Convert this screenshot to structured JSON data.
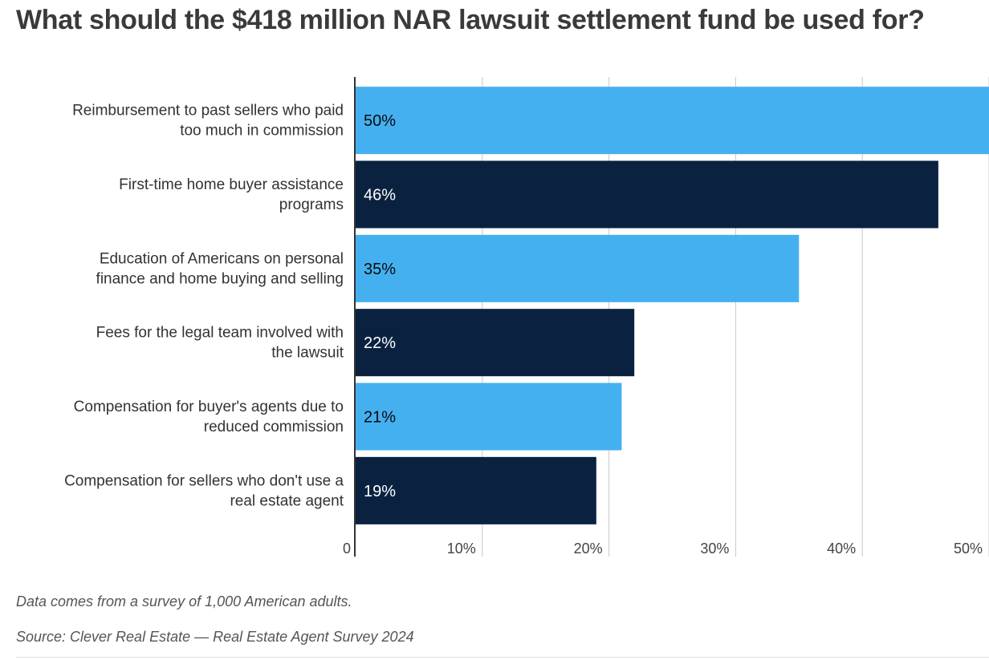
{
  "chart_data": {
    "type": "bar",
    "orientation": "horizontal",
    "title": "What should the $418 million NAR lawsuit settlement fund be used for?",
    "categories": [
      "Reimbursement to past sellers who paid too much in commission",
      "First-time home buyer assistance programs",
      "Education of Americans on personal finance and home buying and selling",
      "Fees for the legal team involved with the lawsuit",
      "Compensation for buyer's agents due to reduced commission",
      "Compensation for sellers who don't use a real estate agent"
    ],
    "values": [
      50,
      46,
      35,
      22,
      21,
      19
    ],
    "data_labels": [
      "50%",
      "46%",
      "35%",
      "22%",
      "21%",
      "19%"
    ],
    "bar_colors": [
      "#44b0f0",
      "#0a2240",
      "#44b0f0",
      "#0a2240",
      "#44b0f0",
      "#0a2240"
    ],
    "label_colors": [
      "#0a0a0a",
      "#ffffff",
      "#0a0a0a",
      "#ffffff",
      "#0a0a0a",
      "#ffffff"
    ],
    "xlim": [
      0,
      50
    ],
    "xticks": [
      0,
      10,
      20,
      30,
      40,
      50
    ],
    "xtick_labels": [
      "0",
      "10%",
      "20%",
      "30%",
      "40%",
      "50%"
    ],
    "grid": true,
    "xlabel": "",
    "ylabel": ""
  },
  "footnotes": {
    "note": "Data comes from a survey of 1,000 American adults.",
    "source": "Source: Clever Real Estate — Real Estate Agent Survey 2024"
  }
}
